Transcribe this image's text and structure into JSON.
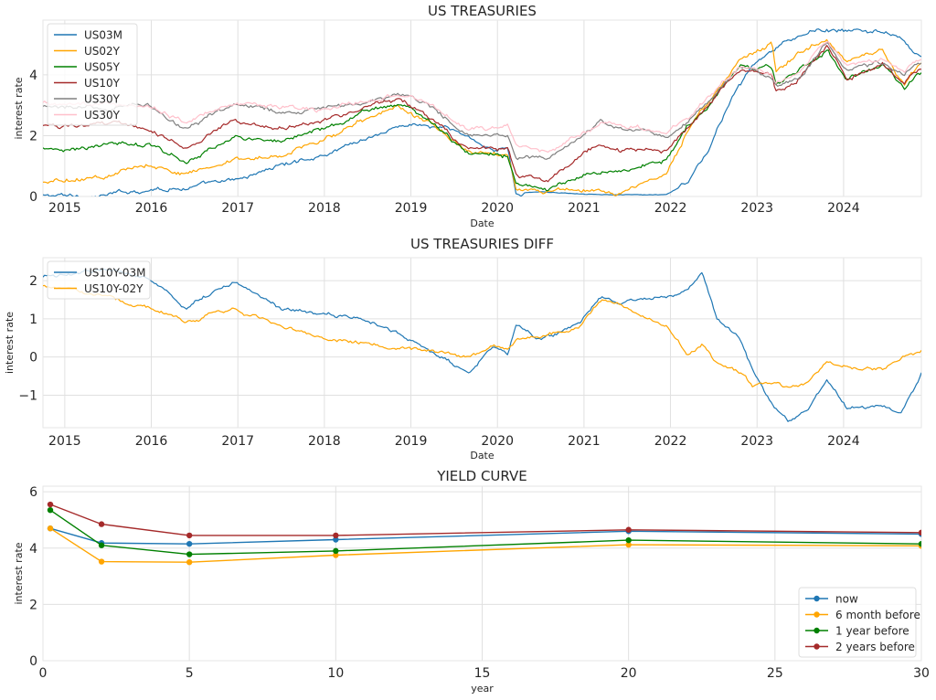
{
  "chart_data": [
    {
      "type": "line",
      "title": "US TREASURIES",
      "xlabel": "Date",
      "ylabel": "interest rate",
      "xlim": [
        "2014-10-01",
        "2024-11-25"
      ],
      "ylim": [
        0,
        5.8
      ],
      "xticks": [
        "2015",
        "2016",
        "2017",
        "2018",
        "2019",
        "2020",
        "2021",
        "2022",
        "2023",
        "2024"
      ],
      "yticks": [
        0,
        2,
        4
      ],
      "grid": true,
      "legend_position": "top-left",
      "series": [
        {
          "name": "US03M",
          "color": "#1f77b4",
          "x": [
            "2014-10-01",
            "2015-06-01",
            "2015-12-15",
            "2016-06-01",
            "2016-12-15",
            "2017-06-15",
            "2017-12-15",
            "2018-06-15",
            "2018-12-20",
            "2019-06-15",
            "2019-09-15",
            "2019-12-15",
            "2020-02-15",
            "2020-03-20",
            "2020-06-15",
            "2021-06-15",
            "2021-12-15",
            "2022-03-15",
            "2022-06-15",
            "2022-09-15",
            "2022-12-15",
            "2023-03-10",
            "2023-06-15",
            "2023-09-15",
            "2024-01-15",
            "2024-06-15",
            "2024-09-15",
            "2024-10-20",
            "2024-11-25"
          ],
          "y": [
            0.02,
            0.01,
            0.25,
            0.3,
            0.5,
            1.0,
            1.35,
            1.9,
            2.4,
            2.2,
            1.9,
            1.55,
            1.55,
            0.1,
            0.15,
            0.05,
            0.05,
            0.45,
            1.6,
            3.2,
            4.3,
            4.8,
            5.2,
            5.5,
            5.4,
            5.45,
            5.1,
            4.7,
            4.65
          ]
        },
        {
          "name": "US02Y",
          "color": "#ffa500",
          "x": [
            "2014-10-01",
            "2015-06-01",
            "2015-12-15",
            "2016-06-01",
            "2016-12-15",
            "2017-06-15",
            "2017-12-15",
            "2018-06-15",
            "2018-11-10",
            "2019-03-15",
            "2019-09-01",
            "2020-02-15",
            "2020-03-20",
            "2020-06-15",
            "2021-06-15",
            "2021-12-15",
            "2022-03-15",
            "2022-06-15",
            "2022-10-20",
            "2023-03-05",
            "2023-03-20",
            "2023-06-15",
            "2023-10-20",
            "2024-01-15",
            "2024-06-15",
            "2024-09-15",
            "2024-10-20",
            "2024-11-25"
          ],
          "y": [
            0.45,
            0.65,
            1.05,
            0.75,
            1.2,
            1.35,
            1.85,
            2.55,
            2.95,
            2.45,
            1.5,
            1.4,
            0.3,
            0.18,
            0.2,
            0.7,
            2.2,
            3.1,
            4.5,
            5.05,
            4.1,
            4.7,
            5.15,
            4.35,
            4.85,
            3.6,
            4.05,
            4.35
          ]
        },
        {
          "name": "US05Y",
          "color": "#008000",
          "x": [
            "2014-10-01",
            "2015-06-01",
            "2015-12-15",
            "2016-06-01",
            "2016-12-15",
            "2017-06-15",
            "2017-12-15",
            "2018-06-15",
            "2018-11-10",
            "2019-03-15",
            "2019-09-01",
            "2020-02-15",
            "2020-03-20",
            "2020-08-01",
            "2021-03-15",
            "2021-06-15",
            "2021-12-15",
            "2022-03-15",
            "2022-06-15",
            "2022-10-20",
            "2023-03-05",
            "2023-03-20",
            "2023-06-15",
            "2023-10-20",
            "2024-01-15",
            "2024-06-15",
            "2024-09-15",
            "2024-10-20",
            "2024-11-25"
          ],
          "y": [
            1.6,
            1.7,
            1.75,
            1.15,
            2.0,
            1.8,
            2.2,
            2.75,
            3.05,
            2.45,
            1.4,
            1.35,
            0.45,
            0.25,
            0.85,
            0.9,
            1.25,
            2.4,
            3.0,
            4.3,
            4.3,
            3.7,
            4.0,
            4.85,
            3.85,
            4.35,
            3.5,
            3.9,
            4.1
          ]
        },
        {
          "name": "US10Y",
          "color": "#a52a2a",
          "x": [
            "2014-10-01",
            "2015-06-01",
            "2015-12-15",
            "2016-06-01",
            "2016-12-15",
            "2017-06-15",
            "2017-12-15",
            "2018-06-15",
            "2018-11-10",
            "2019-03-15",
            "2019-09-01",
            "2020-02-15",
            "2020-03-20",
            "2020-08-01",
            "2021-03-15",
            "2021-06-15",
            "2021-12-15",
            "2022-03-15",
            "2022-06-15",
            "2022-10-20",
            "2023-03-05",
            "2023-03-20",
            "2023-06-15",
            "2023-10-20",
            "2024-01-15",
            "2024-06-15",
            "2024-09-15",
            "2024-10-20",
            "2024-11-25"
          ],
          "y": [
            2.3,
            2.35,
            2.25,
            1.6,
            2.5,
            2.25,
            2.45,
            2.95,
            3.2,
            2.6,
            1.55,
            1.6,
            0.75,
            0.55,
            1.7,
            1.5,
            1.5,
            2.2,
            3.0,
            4.1,
            4.0,
            3.5,
            3.8,
            4.95,
            3.95,
            4.3,
            3.7,
            4.1,
            4.2
          ]
        },
        {
          "name": "US30Y",
          "color": "#808080",
          "x": [
            "2014-10-01",
            "2015-06-01",
            "2015-12-15",
            "2016-06-01",
            "2016-12-15",
            "2017-06-15",
            "2017-12-15",
            "2018-06-15",
            "2018-11-10",
            "2019-03-15",
            "2019-09-01",
            "2020-02-15",
            "2020-03-20",
            "2020-08-01",
            "2021-03-15",
            "2021-06-15",
            "2021-12-15",
            "2022-03-15",
            "2022-06-15",
            "2022-10-20",
            "2023-03-05",
            "2023-03-20",
            "2023-06-15",
            "2023-10-20",
            "2024-01-15",
            "2024-06-15",
            "2024-09-15",
            "2024-10-20",
            "2024-11-25"
          ],
          "y": [
            2.95,
            2.9,
            2.95,
            2.25,
            3.0,
            2.8,
            2.8,
            3.05,
            3.35,
            3.0,
            2.05,
            2.05,
            1.35,
            1.25,
            2.4,
            2.15,
            1.95,
            2.45,
            3.2,
            4.2,
            3.95,
            3.7,
            3.85,
            5.05,
            4.2,
            4.4,
            4.0,
            4.35,
            4.45
          ]
        },
        {
          "name": "US30Y",
          "color": "#ffc0cb",
          "x": [
            "2014-10-01",
            "2015-06-01",
            "2015-12-15",
            "2016-06-01",
            "2016-12-15",
            "2017-06-15",
            "2017-12-15",
            "2018-06-15",
            "2018-11-10",
            "2019-03-15",
            "2019-09-01",
            "2020-02-15",
            "2020-03-20",
            "2020-08-01",
            "2021-03-15",
            "2021-06-15",
            "2021-12-15",
            "2022-03-15",
            "2022-06-15",
            "2022-10-20",
            "2023-03-05",
            "2023-03-20",
            "2023-06-15",
            "2023-10-20",
            "2024-01-15",
            "2024-06-15",
            "2024-09-15",
            "2024-10-20",
            "2024-11-25"
          ],
          "y": [
            3.1,
            3.05,
            3.0,
            2.45,
            3.05,
            2.95,
            2.85,
            3.1,
            3.4,
            3.05,
            2.2,
            2.3,
            1.65,
            1.45,
            2.45,
            2.3,
            2.05,
            2.55,
            3.3,
            4.3,
            4.0,
            3.75,
            3.95,
            5.1,
            4.35,
            4.45,
            4.05,
            4.45,
            4.5
          ]
        }
      ]
    },
    {
      "type": "line",
      "title": "US TREASURIES DIFF",
      "xlabel": "Date",
      "ylabel": "interest rate",
      "xlim": [
        "2014-10-01",
        "2024-11-25"
      ],
      "ylim": [
        -1.85,
        2.6
      ],
      "xticks": [
        "2015",
        "2016",
        "2017",
        "2018",
        "2019",
        "2020",
        "2021",
        "2022",
        "2023",
        "2024"
      ],
      "yticks": [
        -1,
        0,
        1,
        2
      ],
      "grid": true,
      "legend_position": "top-left",
      "series": [
        {
          "name": "US10Y-03M",
          "color": "#1f77b4",
          "x": [
            "2014-10-01",
            "2015-06-01",
            "2015-12-15",
            "2016-06-01",
            "2016-12-15",
            "2017-06-15",
            "2017-12-15",
            "2018-06-15",
            "2018-12-15",
            "2019-03-15",
            "2019-09-01",
            "2019-12-15",
            "2020-02-15",
            "2020-03-20",
            "2020-06-15",
            "2020-12-15",
            "2021-03-15",
            "2021-06-15",
            "2021-12-15",
            "2022-03-15",
            "2022-05-15",
            "2022-07-15",
            "2022-10-20",
            "2022-12-15",
            "2023-03-15",
            "2023-05-15",
            "2023-08-01",
            "2023-10-20",
            "2024-01-15",
            "2024-06-15",
            "2024-09-01",
            "2024-11-25"
          ],
          "y": [
            2.1,
            2.3,
            2.1,
            1.3,
            1.95,
            1.3,
            1.1,
            1.05,
            0.5,
            0.2,
            -0.4,
            0.3,
            0.1,
            0.9,
            0.5,
            0.85,
            1.6,
            1.45,
            1.55,
            1.75,
            2.25,
            1.0,
            0.5,
            -0.35,
            -1.3,
            -1.65,
            -1.4,
            -0.55,
            -1.3,
            -1.25,
            -1.45,
            -0.4
          ]
        },
        {
          "name": "US10Y-02Y",
          "color": "#ffa500",
          "x": [
            "2014-10-01",
            "2015-06-01",
            "2015-12-15",
            "2016-06-01",
            "2016-12-15",
            "2017-06-15",
            "2017-12-15",
            "2018-06-15",
            "2018-12-15",
            "2019-03-15",
            "2019-09-01",
            "2019-12-15",
            "2020-02-15",
            "2020-03-20",
            "2020-06-15",
            "2020-12-15",
            "2021-03-15",
            "2021-06-15",
            "2021-12-15",
            "2022-03-15",
            "2022-05-15",
            "2022-07-15",
            "2022-10-20",
            "2022-12-15",
            "2023-03-15",
            "2023-05-15",
            "2023-08-01",
            "2023-10-20",
            "2024-01-15",
            "2024-06-15",
            "2024-09-01",
            "2024-11-25"
          ],
          "y": [
            1.85,
            1.6,
            1.3,
            0.95,
            1.25,
            0.9,
            0.5,
            0.4,
            0.2,
            0.2,
            0.0,
            0.25,
            0.2,
            0.5,
            0.5,
            0.8,
            1.55,
            1.3,
            0.8,
            0.05,
            0.35,
            -0.2,
            -0.4,
            -0.75,
            -0.65,
            -0.8,
            -0.7,
            -0.15,
            -0.3,
            -0.35,
            0.0,
            0.15
          ]
        }
      ]
    },
    {
      "type": "line",
      "title": "YIELD CURVE",
      "xlabel": "year",
      "ylabel": "interest rate",
      "xlim": [
        0,
        30
      ],
      "ylim": [
        0,
        6.2
      ],
      "xticks": [
        0,
        5,
        10,
        15,
        20,
        25,
        30
      ],
      "yticks": [
        0,
        2,
        4,
        6
      ],
      "grid": true,
      "legend_position": "lower-right",
      "series": [
        {
          "name": "now",
          "color": "#1f77b4",
          "x": [
            0.25,
            2,
            5,
            10,
            20,
            30
          ],
          "y": [
            4.7,
            4.18,
            4.15,
            4.3,
            4.6,
            4.5
          ]
        },
        {
          "name": "6 month before",
          "color": "#ffa500",
          "x": [
            0.25,
            2,
            5,
            10,
            20,
            30
          ],
          "y": [
            4.7,
            3.52,
            3.5,
            3.75,
            4.12,
            4.08
          ]
        },
        {
          "name": "1 year before",
          "color": "#008000",
          "x": [
            0.25,
            2,
            5,
            10,
            20,
            30
          ],
          "y": [
            5.35,
            4.1,
            3.78,
            3.9,
            4.28,
            4.15
          ]
        },
        {
          "name": "2 years before",
          "color": "#a52a2a",
          "x": [
            0.25,
            2,
            5,
            10,
            20,
            30
          ],
          "y": [
            5.55,
            4.85,
            4.45,
            4.45,
            4.65,
            4.55
          ]
        }
      ]
    }
  ]
}
